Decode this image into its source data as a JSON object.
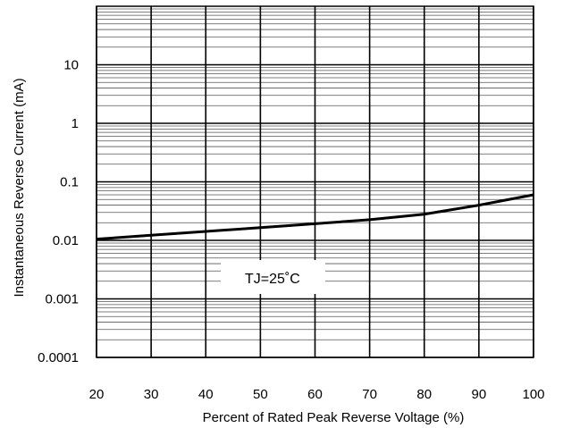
{
  "chart_data": {
    "type": "line",
    "xlabel": "Percent of Rated Peak Reverse  Voltage (%)",
    "ylabel": "Instantaneous Reverse  Current (mA)",
    "x_ticks": [
      20,
      30,
      40,
      50,
      60,
      70,
      80,
      90,
      100
    ],
    "y_tick_labels": [
      "0.0001",
      "0.001",
      "0.01",
      "0.1",
      "1",
      "10"
    ],
    "y_scale": "log",
    "xlim": [
      20,
      100
    ],
    "ylim": [
      0.0001,
      100
    ],
    "grid": true,
    "annotation": "TJ=25˚C",
    "series": [
      {
        "x": [
          20,
          30,
          40,
          50,
          60,
          70,
          80,
          90,
          100
        ],
        "y": [
          0.0105,
          0.0122,
          0.0142,
          0.0165,
          0.0192,
          0.0225,
          0.028,
          0.04,
          0.06
        ]
      }
    ]
  }
}
